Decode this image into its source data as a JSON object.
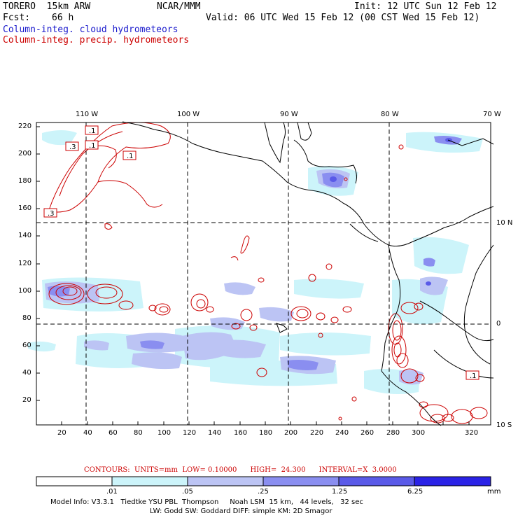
{
  "header": {
    "model": "TORERO  15km ARW",
    "org": "NCAR/MMM",
    "init": "Init: 12 UTC Sun 12 Feb 12",
    "fcst_label": "Fcst:",
    "fcst_value": "66 h",
    "valid": "Valid: 06 UTC Wed 15 Feb 12 (00 CST Wed 15 Feb 12)"
  },
  "fields": {
    "cloud": "Column-integ. cloud hydrometeors",
    "precip": "Column-integ. precip. hydrometeors"
  },
  "colors": {
    "cloud_text": "#1a1acc",
    "precip": "#cc0000",
    "coast": "#000000",
    "shade1": "#ccf4fa",
    "shade2": "#bcc4f4",
    "shade3": "#8a8ef0",
    "shade4": "#5a5ae8",
    "shade5": "#2a22e6"
  },
  "map": {
    "top_lon_labels": [
      "110 W",
      "100 W",
      "90 W",
      "80 W",
      "70 W"
    ],
    "right_lat_labels": [
      "10 N",
      "0",
      "10 S"
    ],
    "y_ticks": [
      "220",
      "200",
      "180",
      "160",
      "140",
      "120",
      "100",
      "80",
      "60",
      "40",
      "20"
    ],
    "x_ticks": [
      "20",
      "40",
      "60",
      "80",
      "100",
      "120",
      "140",
      "160",
      "180",
      "200",
      "220",
      "240",
      "260",
      "280",
      "300",
      "320"
    ],
    "labels": [
      ".1",
      ".3",
      ".1",
      ".3",
      ".1",
      ".1"
    ]
  },
  "contours": {
    "text": "CONTOURS:  UNITS=mm  LOW= 0.10000      HIGH=  24.300      INTERVAL=X  3.0000"
  },
  "colorbar": {
    "values": [
      ".01",
      ".05",
      ".25",
      "1.25",
      "6.25"
    ],
    "unit": "mm"
  },
  "footer": {
    "line1": "Model Info: V3.3.1   Tiedtke YSU PBL  Thompson     Noah LSM  15 km,   44 levels,   32 sec",
    "line2": "LW: Godd SW: Goddard DIFF: simple KM: 2D Smagor"
  }
}
